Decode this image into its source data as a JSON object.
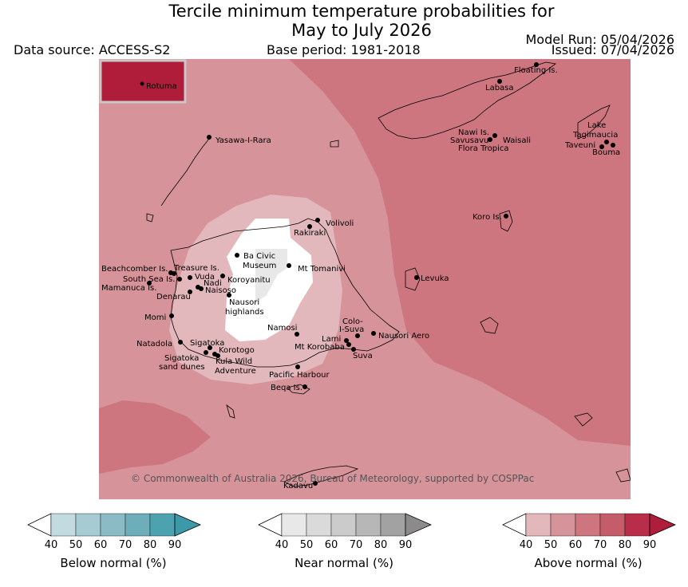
{
  "title_line1": "Tercile minimum temperature probabilities for",
  "title_line2": "May to July 2026",
  "data_source": "Data source: ACCESS-S2",
  "base_period": "Base period: 1981-2018",
  "model_run": "Model Run: 05/04/2026",
  "issued": "Issued: 07/04/2026",
  "copyright": "© Commonwealth of Australia 2026, Bureau of Meteorology, supported by COSPPac",
  "inset_label": "Rotuma",
  "places": {
    "floating": "Floating Is.",
    "labasa": "Labasa",
    "yasawa": "Yasawa-I-Rara",
    "nawi": "Nawi Is.",
    "savusavu": "Savusavu",
    "waisali": "Waisali",
    "flora": "Flora Tropica",
    "lake1": "Lake",
    "lake2": "Tagimaucia",
    "taveuni": "Taveuni",
    "bouma": "Bouma",
    "volivoli": "Volivoli",
    "rakiraki": "Rakiraki",
    "koro": "Koro Is.",
    "baciv1": "Ba Civic",
    "baciv2": "Museum",
    "tomanivi": "Mt Tomanivi",
    "beachcomber": "Beachcomber Is.",
    "treasure": "Treasure Is.",
    "southsea": "South Sea Is.",
    "vuda": "Vuda",
    "nadi": "Nadi",
    "koroyanitu": "Koroyanitu",
    "mamanuca": "Mamanuca Is.",
    "naisoso": "Naisoso",
    "denarau": "Denarau",
    "nausori1": "Nausori",
    "nausori2": "highlands",
    "levuka": "Levuka",
    "momi": "Momi",
    "namosi": "Namosi",
    "colo1": "Colo-",
    "colo2": "I-Suva",
    "natadola": "Natadola",
    "sigatoka": "Sigatoka",
    "lami": "Lami",
    "nausoriaero": "Nausori Aero",
    "korotogo": "Korotogo",
    "korobaba": "Mt Korobaba",
    "sigdunes1": "Sigatoka",
    "sigdunes2": "sand dunes",
    "kula1": "Kula Wild",
    "kula2": "Adventure",
    "suva": "Suva",
    "pacharbour": "Pacific Harbour",
    "beqa": "Beqa Is.",
    "kadavu": "Kadavu"
  },
  "colorbars": [
    {
      "label": "Below normal (%)",
      "ticks": [
        "40",
        "50",
        "60",
        "70",
        "80",
        "90"
      ],
      "colors": [
        "#c2dbe1",
        "#a6cbd3",
        "#8bbcc6",
        "#6eaebb",
        "#4da2b0",
        "#3c9aa8"
      ]
    },
    {
      "label": "Near normal (%)",
      "ticks": [
        "40",
        "50",
        "60",
        "70",
        "80",
        "90"
      ],
      "colors": [
        "#e8e8e8",
        "#dadada",
        "#cbcbcb",
        "#b7b7b7",
        "#a2a2a2",
        "#8c8a8a"
      ]
    },
    {
      "label": "Above normal (%)",
      "ticks": [
        "40",
        "50",
        "60",
        "70",
        "80",
        "90"
      ],
      "colors": [
        "#e3b8bc",
        "#d6939a",
        "#cd7680",
        "#c45c6a",
        "#b82e4a",
        "#b01d3a"
      ]
    }
  ]
}
